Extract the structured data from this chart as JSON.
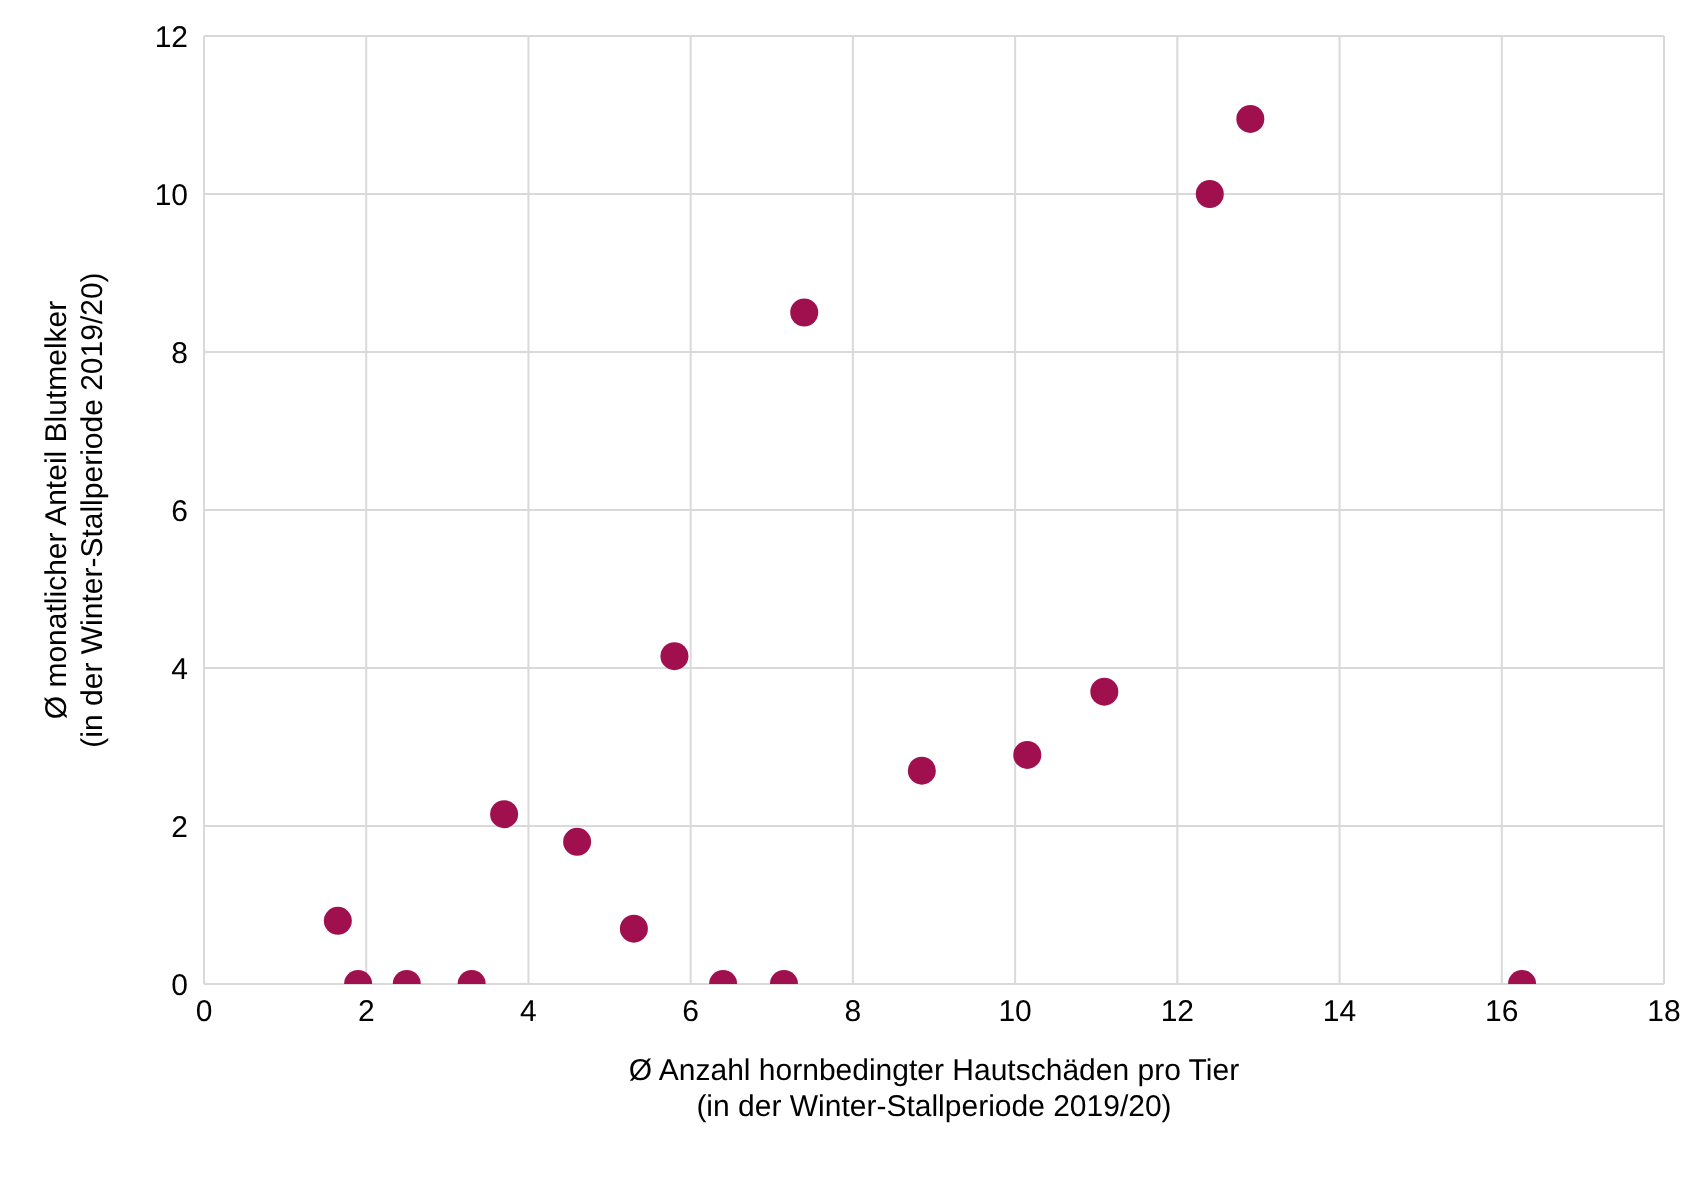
{
  "chart_data": {
    "type": "scatter",
    "xlabel": "Ø Anzahl hornbedingter Hautschäden pro Tier\n(in der Winter-Stallperiode 2019/20)",
    "ylabel": "Ø monatlicher Anteil Blutmelker\n(in der Winter-Stallperiode 2019/20)",
    "x": [
      1.65,
      1.9,
      2.5,
      3.3,
      3.7,
      4.6,
      5.3,
      5.8,
      6.4,
      7.15,
      7.4,
      8.85,
      10.15,
      11.1,
      12.4,
      12.9,
      16.25
    ],
    "series": [
      {
        "color": "#a0104f",
        "values": [
          0.8,
          0,
          0,
          0,
          2.15,
          1.8,
          0.7,
          4.15,
          0,
          0,
          8.5,
          2.7,
          2.9,
          3.7,
          10,
          10.95,
          0
        ]
      }
    ],
    "xlim": [
      0,
      18
    ],
    "xticks": [
      0,
      2,
      4,
      6,
      8,
      10,
      12,
      14,
      16,
      18
    ],
    "ylim": [
      0,
      12
    ],
    "yticks": [
      0,
      2,
      4,
      6,
      8,
      10,
      12
    ],
    "grid": true,
    "marker": "circle"
  }
}
